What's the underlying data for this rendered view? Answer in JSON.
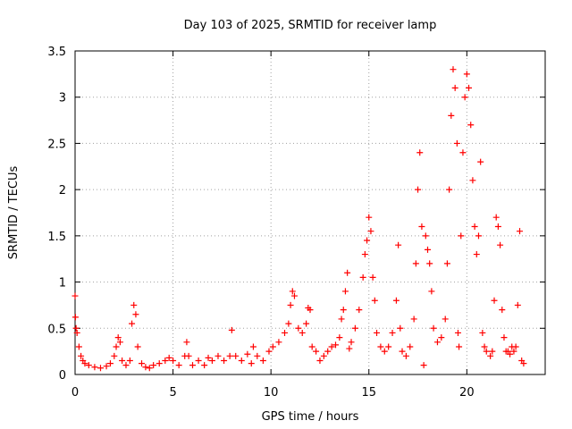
{
  "chart_data": {
    "type": "scatter",
    "title": "Day 103 of 2025, SRMTID for receiver lamp",
    "xlabel": "GPS time / hours",
    "ylabel": "SRMTID / TECUs",
    "xlim": [
      0,
      24
    ],
    "ylim": [
      0,
      3.5
    ],
    "x_ticks": [
      0,
      5,
      10,
      15,
      20
    ],
    "x_tick_labels": [
      "0",
      "5",
      "10",
      "15",
      "20"
    ],
    "y_ticks": [
      0,
      0.5,
      1,
      1.5,
      2,
      2.5,
      3,
      3.5
    ],
    "y_tick_labels": [
      "0",
      "0.5",
      "1",
      "1.5",
      "2",
      "2.5",
      "3",
      "3.5"
    ],
    "grid": true,
    "marker": "+",
    "series": [
      {
        "name": "SRMTID",
        "color": "#ff0000",
        "points": [
          [
            0.0,
            0.85
          ],
          [
            0.02,
            0.62
          ],
          [
            0.05,
            0.5
          ],
          [
            0.1,
            0.45
          ],
          [
            0.2,
            0.3
          ],
          [
            0.3,
            0.2
          ],
          [
            0.4,
            0.15
          ],
          [
            0.5,
            0.12
          ],
          [
            0.7,
            0.1
          ],
          [
            1.0,
            0.08
          ],
          [
            1.3,
            0.07
          ],
          [
            1.6,
            0.09
          ],
          [
            1.8,
            0.12
          ],
          [
            2.0,
            0.2
          ],
          [
            2.1,
            0.3
          ],
          [
            2.2,
            0.4
          ],
          [
            2.3,
            0.35
          ],
          [
            2.4,
            0.15
          ],
          [
            2.6,
            0.1
          ],
          [
            2.8,
            0.15
          ],
          [
            2.9,
            0.55
          ],
          [
            3.0,
            0.75
          ],
          [
            3.1,
            0.65
          ],
          [
            3.2,
            0.3
          ],
          [
            3.4,
            0.12
          ],
          [
            3.6,
            0.08
          ],
          [
            3.8,
            0.07
          ],
          [
            4.0,
            0.1
          ],
          [
            4.3,
            0.12
          ],
          [
            4.6,
            0.15
          ],
          [
            4.8,
            0.18
          ],
          [
            5.0,
            0.15
          ],
          [
            5.3,
            0.1
          ],
          [
            5.6,
            0.2
          ],
          [
            5.7,
            0.35
          ],
          [
            5.8,
            0.2
          ],
          [
            6.0,
            0.1
          ],
          [
            6.3,
            0.15
          ],
          [
            6.6,
            0.1
          ],
          [
            6.8,
            0.18
          ],
          [
            7.0,
            0.15
          ],
          [
            7.3,
            0.2
          ],
          [
            7.6,
            0.15
          ],
          [
            7.9,
            0.2
          ],
          [
            8.0,
            0.48
          ],
          [
            8.2,
            0.2
          ],
          [
            8.5,
            0.15
          ],
          [
            8.8,
            0.22
          ],
          [
            9.0,
            0.12
          ],
          [
            9.1,
            0.3
          ],
          [
            9.3,
            0.2
          ],
          [
            9.6,
            0.15
          ],
          [
            9.9,
            0.25
          ],
          [
            10.1,
            0.3
          ],
          [
            10.4,
            0.35
          ],
          [
            10.7,
            0.45
          ],
          [
            10.9,
            0.55
          ],
          [
            11.0,
            0.75
          ],
          [
            11.1,
            0.9
          ],
          [
            11.2,
            0.85
          ],
          [
            11.4,
            0.5
          ],
          [
            11.6,
            0.45
          ],
          [
            11.8,
            0.55
          ],
          [
            11.9,
            0.72
          ],
          [
            12.0,
            0.7
          ],
          [
            12.1,
            0.3
          ],
          [
            12.3,
            0.25
          ],
          [
            12.5,
            0.15
          ],
          [
            12.7,
            0.2
          ],
          [
            12.9,
            0.25
          ],
          [
            13.1,
            0.3
          ],
          [
            13.3,
            0.32
          ],
          [
            13.5,
            0.4
          ],
          [
            13.6,
            0.6
          ],
          [
            13.7,
            0.7
          ],
          [
            13.8,
            0.9
          ],
          [
            13.9,
            1.1
          ],
          [
            14.0,
            0.28
          ],
          [
            14.1,
            0.35
          ],
          [
            14.3,
            0.5
          ],
          [
            14.5,
            0.7
          ],
          [
            14.7,
            1.05
          ],
          [
            14.8,
            1.3
          ],
          [
            14.9,
            1.45
          ],
          [
            15.0,
            1.7
          ],
          [
            15.1,
            1.55
          ],
          [
            15.2,
            1.05
          ],
          [
            15.3,
            0.8
          ],
          [
            15.4,
            0.45
          ],
          [
            15.6,
            0.3
          ],
          [
            15.8,
            0.25
          ],
          [
            16.0,
            0.3
          ],
          [
            16.2,
            0.45
          ],
          [
            16.4,
            0.8
          ],
          [
            16.5,
            1.4
          ],
          [
            16.6,
            0.5
          ],
          [
            16.7,
            0.25
          ],
          [
            16.9,
            0.2
          ],
          [
            17.1,
            0.3
          ],
          [
            17.3,
            0.6
          ],
          [
            17.4,
            1.2
          ],
          [
            17.5,
            2.0
          ],
          [
            17.6,
            2.4
          ],
          [
            17.7,
            1.6
          ],
          [
            17.8,
            0.1
          ],
          [
            17.9,
            1.5
          ],
          [
            18.0,
            1.35
          ],
          [
            18.1,
            1.2
          ],
          [
            18.2,
            0.9
          ],
          [
            18.3,
            0.5
          ],
          [
            18.5,
            0.35
          ],
          [
            18.7,
            0.4
          ],
          [
            18.9,
            0.6
          ],
          [
            19.0,
            1.2
          ],
          [
            19.1,
            2.0
          ],
          [
            19.2,
            2.8
          ],
          [
            19.3,
            3.3
          ],
          [
            19.4,
            3.1
          ],
          [
            19.5,
            2.5
          ],
          [
            19.55,
            0.45
          ],
          [
            19.6,
            0.3
          ],
          [
            19.7,
            1.5
          ],
          [
            19.8,
            2.4
          ],
          [
            19.9,
            3.0
          ],
          [
            20.0,
            3.25
          ],
          [
            20.1,
            3.1
          ],
          [
            20.2,
            2.7
          ],
          [
            20.3,
            2.1
          ],
          [
            20.4,
            1.6
          ],
          [
            20.5,
            1.3
          ],
          [
            20.6,
            1.5
          ],
          [
            20.7,
            2.3
          ],
          [
            20.8,
            0.45
          ],
          [
            20.9,
            0.3
          ],
          [
            21.0,
            0.25
          ],
          [
            21.2,
            0.2
          ],
          [
            21.3,
            0.25
          ],
          [
            21.4,
            0.8
          ],
          [
            21.5,
            1.7
          ],
          [
            21.6,
            1.6
          ],
          [
            21.7,
            1.4
          ],
          [
            21.8,
            0.7
          ],
          [
            21.9,
            0.4
          ],
          [
            22.0,
            0.25
          ],
          [
            22.1,
            0.25
          ],
          [
            22.2,
            0.22
          ],
          [
            22.3,
            0.3
          ],
          [
            22.4,
            0.25
          ],
          [
            22.5,
            0.3
          ],
          [
            22.6,
            0.75
          ],
          [
            22.7,
            1.55
          ],
          [
            22.8,
            0.15
          ],
          [
            22.9,
            0.12
          ]
        ]
      }
    ]
  }
}
